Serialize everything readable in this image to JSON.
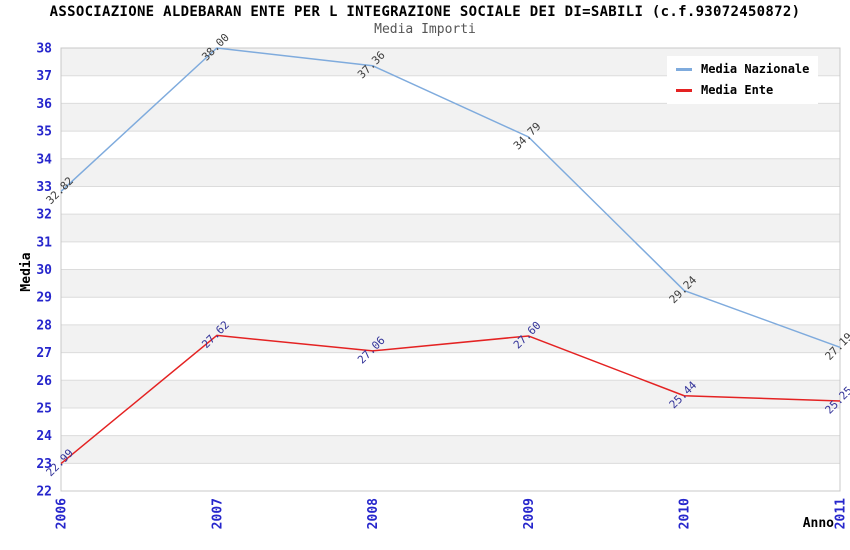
{
  "header": {
    "title": "ASSOCIAZIONE ALDEBARAN ENTE PER L INTEGRAZIONE SOCIALE DEI DI=SABILI (c.f.93072450872)"
  },
  "chart_data": {
    "type": "line",
    "title": "Media Importi",
    "xlabel": "Anno",
    "ylabel": "Media",
    "categories": [
      "2006",
      "2007",
      "2008",
      "2009",
      "2010",
      "2011"
    ],
    "series": [
      {
        "name": "Media Nazionale",
        "color": "#7fabdd",
        "label_color": "#3d3d3d",
        "values": [
          32.82,
          38.0,
          37.36,
          34.79,
          29.24,
          27.19
        ]
      },
      {
        "name": "Media Ente",
        "color": "#e42222",
        "label_color": "#333399",
        "values": [
          22.99,
          27.62,
          27.06,
          27.6,
          25.44,
          25.25
        ]
      }
    ],
    "ylim": [
      22,
      38
    ],
    "ytick_step": 1,
    "grid": "horizontal",
    "legend_position": "top-right",
    "axis_tick_color": "#2626cc",
    "grid_color": "#dcdcdc",
    "border_color": "#c8c8c8",
    "band_colors": [
      "#ffffff",
      "#f2f2f2"
    ]
  }
}
